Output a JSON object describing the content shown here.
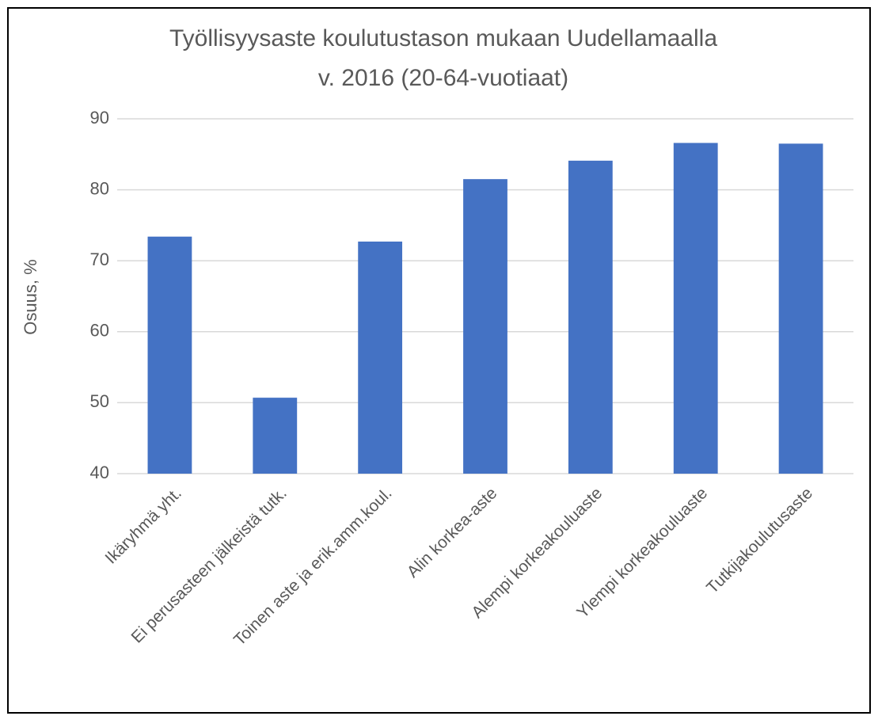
{
  "chart_data": {
    "type": "bar",
    "title": [
      "Työllisyysaste koulutustason mukaan Uudellamaalla",
      "v. 2016 (20-64-vuotiaat)"
    ],
    "y_label": "Osuus, %",
    "categories": [
      "Ikäryhmä yht.",
      "Ei perusasteen jälkeistä tutk.",
      "Toinen aste ja erik.amm.koul.",
      "Alin korkea-aste",
      "Alempi korkeakouluaste",
      "Ylempi korkeakouluaste",
      "Tutkijakoulutusaste"
    ],
    "values": [
      73.4,
      50.7,
      72.7,
      81.5,
      84.1,
      86.6,
      86.5
    ],
    "color": "#4472c4",
    "ylim": [
      40,
      90
    ],
    "yticks": [
      40,
      50,
      60,
      70,
      80,
      90
    ],
    "grid": true
  }
}
